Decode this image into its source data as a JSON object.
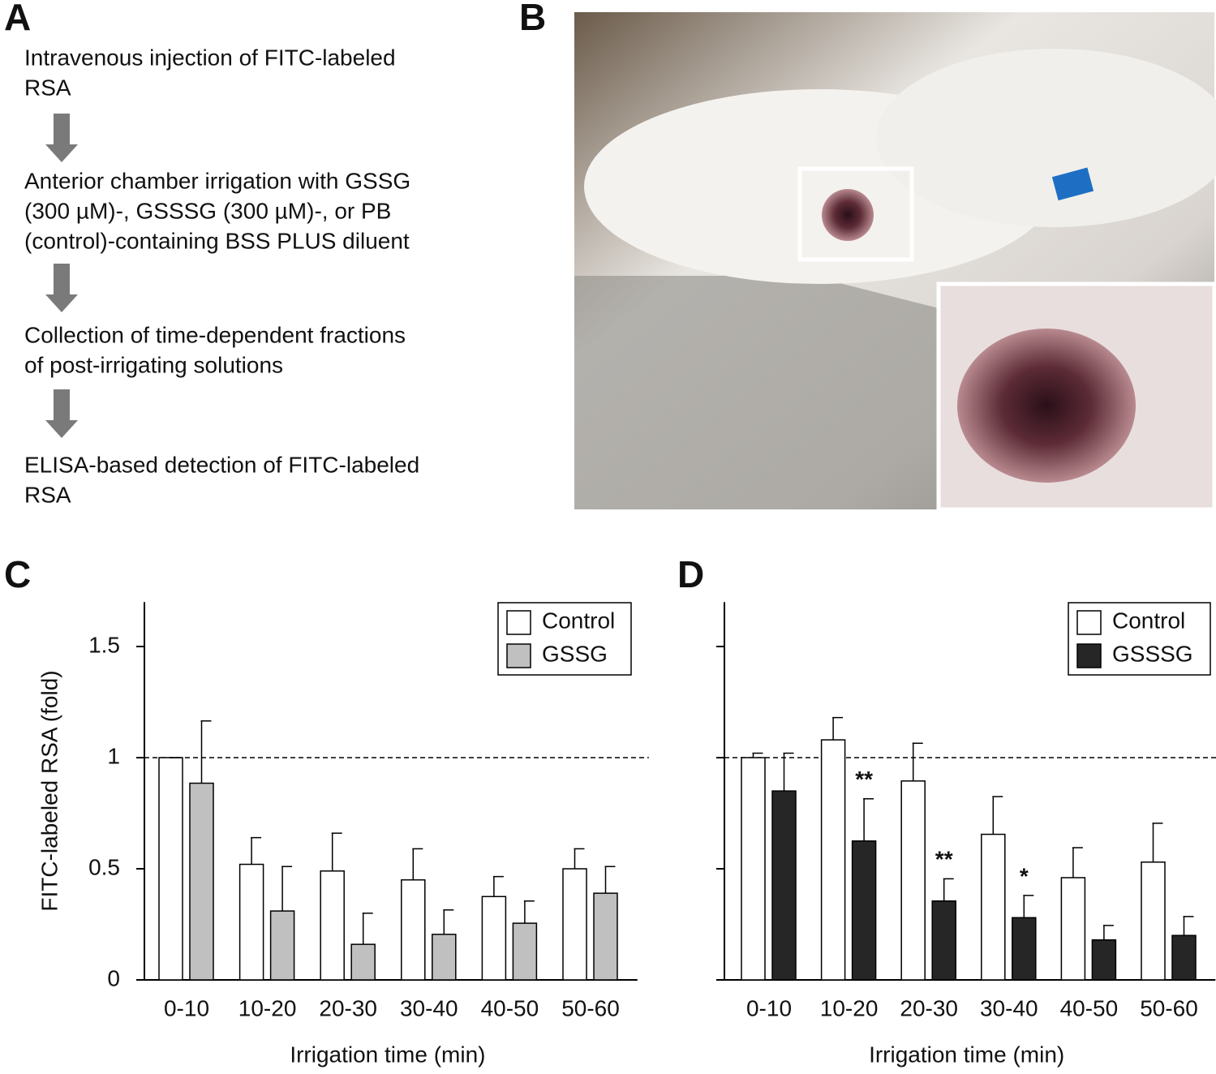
{
  "flowchart": {
    "label": "A",
    "steps": [
      [
        "Intravenous injection of FITC-labeled",
        "RSA"
      ],
      [
        "Anterior chamber irrigation with GSSG",
        "(300 µM)-, GSSSG (300 µM)-, or PB",
        "(control)-containing BSS PLUS diluent"
      ],
      [
        "Collection of time-dependent fractions",
        "of post-irrigating solutions"
      ],
      [
        "ELISA-based detection of FITC-labeled",
        "RSA"
      ]
    ]
  },
  "photo": {
    "label": "B"
  },
  "chart_data": [
    {
      "type": "bar",
      "label": "C",
      "ylabel": "FITC-labeled RSA (fold)",
      "xlabel": "Irrigation time (min)",
      "categories": [
        "0-10",
        "10-20",
        "20-30",
        "30-40",
        "40-50",
        "50-60"
      ],
      "series": [
        {
          "name": "Control",
          "color": "#ffffff",
          "values": [
            1,
            0.52,
            0.49,
            0.45,
            0.375,
            0.5
          ],
          "errors": [
            0,
            0.12,
            0.17,
            0.14,
            0.09,
            0.09
          ]
        },
        {
          "name": "GSSG",
          "color": "#c0c0c0",
          "values": [
            0.885,
            0.31,
            0.16,
            0.205,
            0.255,
            0.39
          ],
          "errors": [
            0.28,
            0.2,
            0.14,
            0.11,
            0.1,
            0.12
          ]
        }
      ],
      "ylim": [
        0,
        1.7
      ],
      "yticks": [
        0,
        0.5,
        1,
        1.5
      ],
      "reference_line": 1,
      "legend": "upper right"
    },
    {
      "type": "bar",
      "label": "D",
      "xlabel": "Irrigation time (min)",
      "categories": [
        "0-10",
        "10-20",
        "20-30",
        "30-40",
        "40-50",
        "50-60"
      ],
      "series": [
        {
          "name": "Control",
          "color": "#ffffff",
          "values": [
            1,
            1.08,
            0.895,
            0.655,
            0.46,
            0.53
          ],
          "errors": [
            0.02,
            0.1,
            0.17,
            0.17,
            0.135,
            0.175
          ]
        },
        {
          "name": "GSSSG",
          "color": "#262626",
          "values": [
            0.85,
            0.625,
            0.355,
            0.28,
            0.18,
            0.2
          ],
          "errors": [
            0.17,
            0.19,
            0.1,
            0.1,
            0.065,
            0.085
          ],
          "significance": [
            null,
            "**",
            "**",
            "*",
            null,
            null
          ]
        }
      ],
      "ylim": [
        0,
        1.7
      ],
      "ytick_marks": [
        0,
        0.5,
        1,
        1.5
      ],
      "reference_line": 1,
      "legend": "upper right"
    }
  ]
}
